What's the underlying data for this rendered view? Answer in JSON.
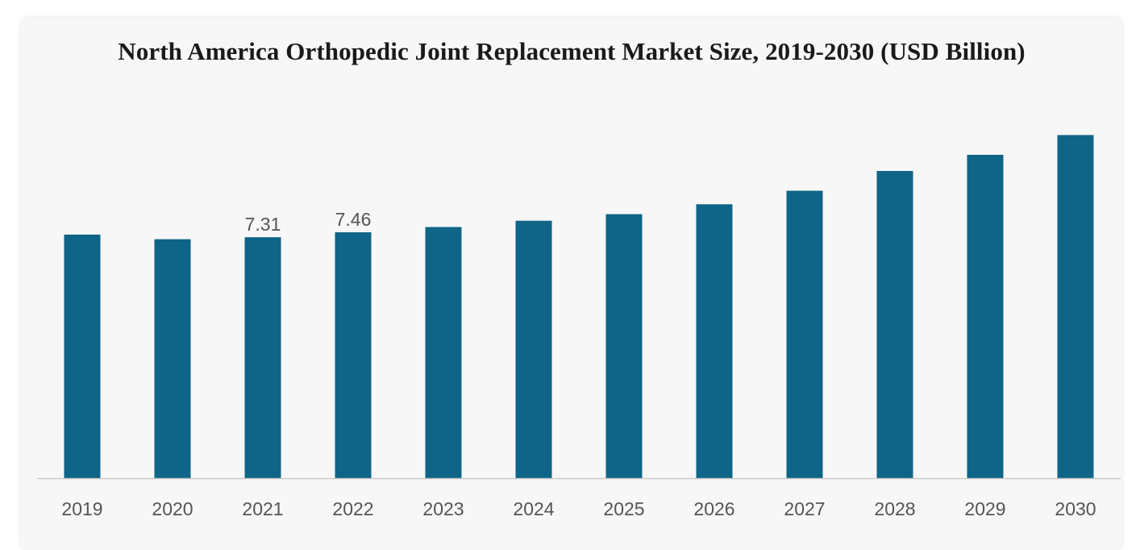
{
  "chart_data": {
    "type": "bar",
    "title": "North America Orthopedic Joint Replacement Market Size, 2019-2030 (USD Billion)",
    "xlabel": "",
    "ylabel": "",
    "categories": [
      "2019",
      "2020",
      "2021",
      "2022",
      "2023",
      "2024",
      "2025",
      "2026",
      "2027",
      "2028",
      "2029",
      "2030"
    ],
    "values": [
      7.39,
      7.25,
      7.31,
      7.46,
      7.62,
      7.81,
      8.01,
      8.31,
      8.72,
      9.32,
      9.81,
      10.41
    ],
    "data_labels": [
      null,
      null,
      "7.31",
      "7.46",
      null,
      null,
      null,
      null,
      null,
      null,
      null,
      null
    ],
    "ylim": [
      0,
      12.5
    ],
    "grid": false,
    "legend": "none",
    "bar_color": "#0f6587",
    "axis_color": "#cccccc"
  }
}
